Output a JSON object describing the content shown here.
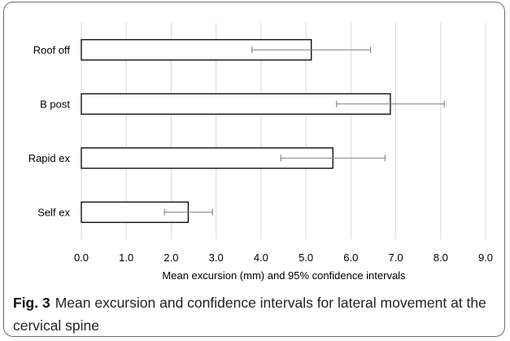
{
  "chart_data": {
    "type": "bar",
    "orientation": "horizontal",
    "categories": [
      "Roof off",
      "B post",
      "Rapid ex",
      "Self ex"
    ],
    "values": [
      5.12,
      6.88,
      5.6,
      2.38
    ],
    "error_low": [
      3.8,
      5.68,
      4.44,
      1.85
    ],
    "error_high": [
      6.44,
      8.08,
      6.76,
      2.92
    ],
    "xlim": [
      0,
      9
    ],
    "xticks": [
      "0.0",
      "1.0",
      "2.0",
      "3.0",
      "4.0",
      "5.0",
      "6.0",
      "7.0",
      "8.0",
      "9.0"
    ],
    "xlabel": "Mean excursion (mm) and 95% confidence intervals",
    "ylabel": "",
    "title": "",
    "grid": "vertical",
    "bar_fill": "#ffffff",
    "bar_stroke": "#000000",
    "error_bar_color": "#7f7f7f",
    "gridline_color": "#d9d9d9"
  },
  "caption": {
    "label": "Fig. 3",
    "text": "Mean excursion and confidence intervals for lateral movement at the cervical spine"
  }
}
